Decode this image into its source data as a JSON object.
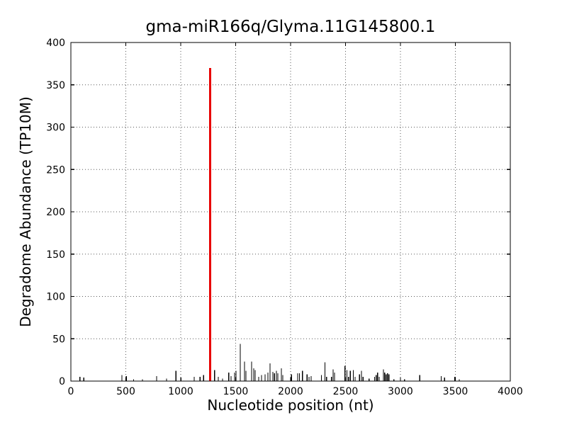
{
  "figure": {
    "background": "#ffffff",
    "axis_color": "#000000"
  },
  "chart_data": {
    "type": "bar",
    "title": "gma-miR166q/Glyma.11G145800.1",
    "xlabel": "Nucleotide position (nt)",
    "ylabel": "Degradome Abundance (TP10M)",
    "xlim": [
      0,
      4000
    ],
    "ylim": [
      0,
      400
    ],
    "xticks": [
      0,
      500,
      1000,
      1500,
      2000,
      2500,
      3000,
      3500,
      4000
    ],
    "yticks": [
      0,
      50,
      100,
      150,
      200,
      250,
      300,
      350,
      400
    ],
    "grid": true,
    "grid_style": "dotted",
    "legend": "none",
    "bar_color": "#000000",
    "highlight_color": "#e80000",
    "highlight": {
      "position": 1268,
      "value": 370
    },
    "series": [
      {
        "name": "degradome-abundance",
        "color": "#000000",
        "points": [
          [
            82,
            5
          ],
          [
            118,
            4
          ],
          [
            465,
            7
          ],
          [
            505,
            6
          ],
          [
            570,
            2
          ],
          [
            652,
            2
          ],
          [
            781,
            6
          ],
          [
            871,
            3
          ],
          [
            957,
            12
          ],
          [
            1002,
            4
          ],
          [
            1123,
            5
          ],
          [
            1176,
            5
          ],
          [
            1208,
            7
          ],
          [
            1308,
            13
          ],
          [
            1342,
            5
          ],
          [
            1381,
            3
          ],
          [
            1437,
            10
          ],
          [
            1458,
            6
          ],
          [
            1490,
            10
          ],
          [
            1503,
            12
          ],
          [
            1542,
            44
          ],
          [
            1581,
            23
          ],
          [
            1594,
            12
          ],
          [
            1645,
            23
          ],
          [
            1665,
            15
          ],
          [
            1677,
            13
          ],
          [
            1710,
            5
          ],
          [
            1735,
            7
          ],
          [
            1768,
            8
          ],
          [
            1794,
            10
          ],
          [
            1813,
            21
          ],
          [
            1839,
            11
          ],
          [
            1853,
            9
          ],
          [
            1871,
            12
          ],
          [
            1884,
            9
          ],
          [
            1916,
            15
          ],
          [
            1929,
            7
          ],
          [
            2008,
            8
          ],
          [
            2065,
            9
          ],
          [
            2080,
            9
          ],
          [
            2108,
            12
          ],
          [
            2150,
            8
          ],
          [
            2168,
            5
          ],
          [
            2187,
            6
          ],
          [
            2280,
            7
          ],
          [
            2312,
            22
          ],
          [
            2327,
            5
          ],
          [
            2372,
            5
          ],
          [
            2387,
            14
          ],
          [
            2400,
            10
          ],
          [
            2495,
            18
          ],
          [
            2512,
            13
          ],
          [
            2527,
            5
          ],
          [
            2544,
            12
          ],
          [
            2570,
            13
          ],
          [
            2587,
            5
          ],
          [
            2628,
            8
          ],
          [
            2645,
            12
          ],
          [
            2660,
            5
          ],
          [
            2714,
            3
          ],
          [
            2764,
            5
          ],
          [
            2779,
            7
          ],
          [
            2792,
            10
          ],
          [
            2806,
            5
          ],
          [
            2845,
            14
          ],
          [
            2856,
            10
          ],
          [
            2869,
            8
          ],
          [
            2882,
            9
          ],
          [
            2895,
            8
          ],
          [
            2940,
            2
          ],
          [
            3000,
            4
          ],
          [
            3037,
            2
          ],
          [
            3176,
            7
          ],
          [
            3370,
            6
          ],
          [
            3402,
            4
          ],
          [
            3495,
            5
          ],
          [
            3535,
            2
          ]
        ]
      }
    ]
  }
}
